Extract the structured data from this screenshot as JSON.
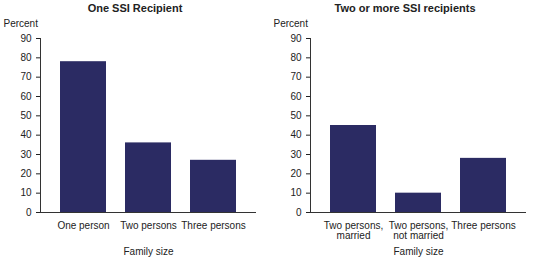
{
  "chart_data": [
    {
      "type": "bar",
      "title": "One SSI Recipient",
      "ylabel": "Percent",
      "xlabel": "Family size",
      "categories": [
        "One person",
        "Two persons",
        "Three persons"
      ],
      "values": [
        78,
        36,
        27
      ],
      "color": "#2b2b63",
      "ylim": [
        0,
        90
      ],
      "yticks": [
        0,
        10,
        20,
        30,
        40,
        50,
        60,
        70,
        80,
        90
      ],
      "grid": false
    },
    {
      "type": "bar",
      "title": "Two or more SSI recipients",
      "ylabel": "Percent",
      "xlabel": "Family size",
      "categories": [
        "Two persons, married",
        "Two persons, not married",
        "Three persons"
      ],
      "values": [
        45,
        10,
        28
      ],
      "color": "#2b2b63",
      "ylim": [
        0,
        90
      ],
      "yticks": [
        0,
        10,
        20,
        30,
        40,
        50,
        60,
        70,
        80,
        90
      ],
      "grid": false
    }
  ]
}
